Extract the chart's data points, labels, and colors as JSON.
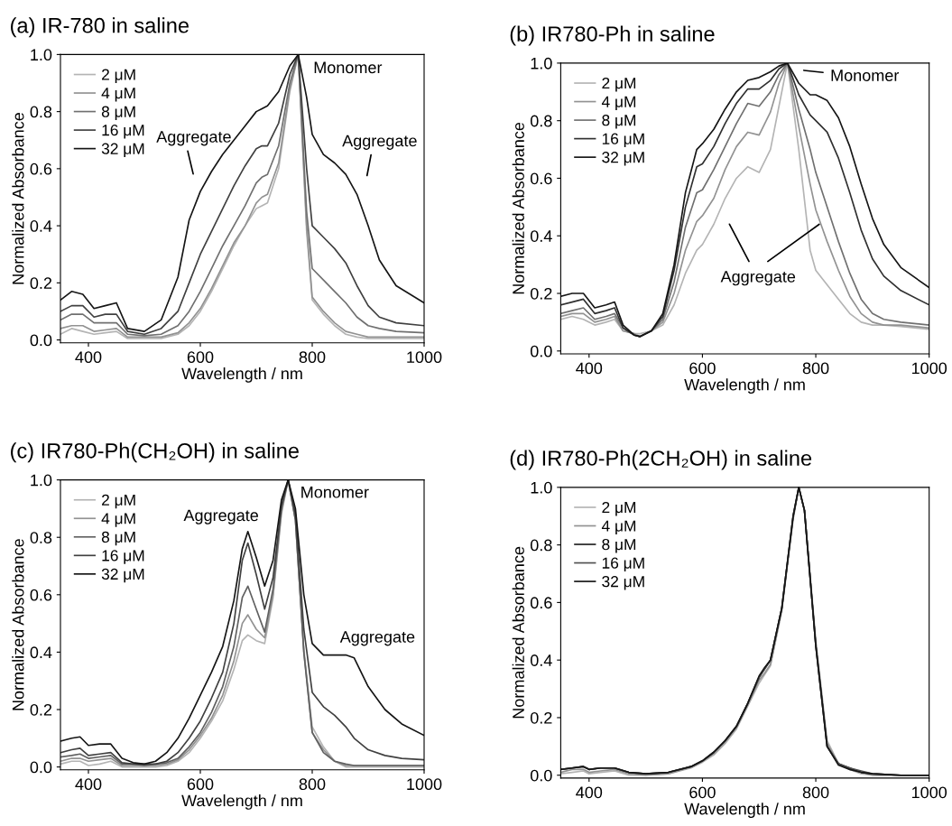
{
  "chart_data": [
    {
      "type": "line",
      "title": "(a) IR-780 in saline",
      "xlabel": "Wavelength / nm",
      "ylabel": "Normalized Absorbance",
      "legend": "top left",
      "grid": false,
      "line_style": "solid",
      "xlim": [
        350,
        1000
      ],
      "ylim": [
        -0.01,
        1.0
      ],
      "xticks": [
        400,
        600,
        800,
        1000
      ],
      "yticks": [
        {
          "value": 0,
          "label": "0.0"
        },
        {
          "value": 0.2,
          "label": "0.2"
        },
        {
          "value": 0.4,
          "label": "0.4"
        },
        {
          "value": 0.6,
          "label": "0.6"
        },
        {
          "value": 0.8,
          "label": "0.8"
        },
        {
          "value": 1,
          "label": "1.0"
        }
      ],
      "x": [
        350,
        370,
        390,
        410,
        430,
        450,
        470,
        500,
        530,
        560,
        580,
        600,
        620,
        640,
        660,
        680,
        700,
        710,
        720,
        740,
        760,
        775,
        790,
        800,
        820,
        840,
        860,
        880,
        900,
        920,
        950,
        1000
      ],
      "annotations": [
        "Monomer",
        "Aggregate",
        "Aggregate"
      ],
      "series": [
        {
          "name": "2 μM",
          "color": "#b4b4b4",
          "values": [
            0.02,
            0.04,
            0.03,
            0.02,
            0.025,
            0.03,
            0.005,
            0.005,
            0.005,
            0.02,
            0.05,
            0.1,
            0.17,
            0.25,
            0.33,
            0.4,
            0.46,
            0.47,
            0.48,
            0.6,
            0.87,
            1.0,
            0.38,
            0.14,
            0.09,
            0.05,
            0.02,
            0.01,
            0.005,
            0.005,
            0.005,
            0.005
          ]
        },
        {
          "name": "4 μM",
          "color": "#929292",
          "values": [
            0.04,
            0.05,
            0.05,
            0.03,
            0.035,
            0.04,
            0.01,
            0.01,
            0.01,
            0.025,
            0.06,
            0.11,
            0.18,
            0.26,
            0.34,
            0.4,
            0.48,
            0.5,
            0.51,
            0.62,
            0.88,
            1.0,
            0.4,
            0.15,
            0.1,
            0.06,
            0.03,
            0.02,
            0.01,
            0.01,
            0.01,
            0.01
          ]
        },
        {
          "name": "8 μM",
          "color": "#707070",
          "values": [
            0.07,
            0.09,
            0.09,
            0.06,
            0.06,
            0.06,
            0.02,
            0.015,
            0.02,
            0.05,
            0.1,
            0.17,
            0.25,
            0.33,
            0.4,
            0.47,
            0.55,
            0.57,
            0.58,
            0.68,
            0.9,
            1.0,
            0.45,
            0.25,
            0.21,
            0.17,
            0.13,
            0.08,
            0.05,
            0.04,
            0.03,
            0.025
          ]
        },
        {
          "name": "16 μM",
          "color": "#404040",
          "values": [
            0.1,
            0.12,
            0.12,
            0.08,
            0.09,
            0.09,
            0.03,
            0.02,
            0.04,
            0.1,
            0.2,
            0.3,
            0.38,
            0.46,
            0.54,
            0.61,
            0.67,
            0.68,
            0.68,
            0.76,
            0.93,
            1.0,
            0.6,
            0.4,
            0.36,
            0.32,
            0.27,
            0.19,
            0.12,
            0.08,
            0.06,
            0.05
          ]
        },
        {
          "name": "32 μM",
          "color": "#151515",
          "values": [
            0.14,
            0.17,
            0.16,
            0.11,
            0.12,
            0.13,
            0.04,
            0.03,
            0.07,
            0.22,
            0.42,
            0.52,
            0.59,
            0.65,
            0.7,
            0.75,
            0.8,
            0.81,
            0.82,
            0.87,
            0.96,
            1.0,
            0.85,
            0.72,
            0.65,
            0.62,
            0.58,
            0.51,
            0.4,
            0.28,
            0.19,
            0.13
          ]
        }
      ]
    },
    {
      "type": "line",
      "title": "(b) IR780-Ph in saline",
      "xlabel": "Wavelength / nm",
      "ylabel": "Normalized Absorbance",
      "legend": "top left",
      "grid": false,
      "line_style": "solid",
      "xlim": [
        350,
        1000
      ],
      "ylim": [
        -0.01,
        1.0
      ],
      "xticks": [
        400,
        600,
        800,
        1000
      ],
      "yticks": [
        {
          "value": 0,
          "label": "0.0"
        },
        {
          "value": 0.2,
          "label": "0.2"
        },
        {
          "value": 0.4,
          "label": "0.4"
        },
        {
          "value": 0.6,
          "label": "0.6"
        },
        {
          "value": 0.8,
          "label": "0.8"
        },
        {
          "value": 1,
          "label": "1.0"
        }
      ],
      "x": [
        350,
        370,
        390,
        410,
        430,
        445,
        460,
        480,
        490,
        510,
        530,
        550,
        570,
        590,
        600,
        620,
        640,
        660,
        680,
        700,
        720,
        735,
        750,
        770,
        790,
        800,
        820,
        840,
        860,
        880,
        900,
        920,
        950,
        1000
      ],
      "annotations": [
        "Monomer",
        {
          "text": "Aggregate",
          "x": 806,
          "y": 0.44
        }
      ],
      "series": [
        {
          "name": "2 μM",
          "color": "#b4b4b4",
          "values": [
            0.11,
            0.12,
            0.11,
            0.09,
            0.1,
            0.11,
            0.07,
            0.06,
            0.06,
            0.07,
            0.09,
            0.16,
            0.27,
            0.35,
            0.37,
            0.44,
            0.53,
            0.6,
            0.64,
            0.62,
            0.7,
            0.85,
            1.0,
            0.7,
            0.35,
            0.28,
            0.23,
            0.18,
            0.13,
            0.1,
            0.09,
            0.09,
            0.085,
            0.075
          ]
        },
        {
          "name": "4 μM",
          "color": "#929292",
          "values": [
            0.12,
            0.13,
            0.13,
            0.1,
            0.11,
            0.12,
            0.07,
            0.06,
            0.05,
            0.07,
            0.1,
            0.2,
            0.35,
            0.45,
            0.47,
            0.53,
            0.63,
            0.71,
            0.76,
            0.75,
            0.83,
            0.93,
            1.0,
            0.78,
            0.58,
            0.49,
            0.38,
            0.28,
            0.19,
            0.13,
            0.1,
            0.09,
            0.09,
            0.08
          ]
        },
        {
          "name": "8 μM",
          "color": "#707070",
          "values": [
            0.13,
            0.14,
            0.15,
            0.11,
            0.12,
            0.13,
            0.08,
            0.055,
            0.05,
            0.07,
            0.11,
            0.24,
            0.43,
            0.55,
            0.56,
            0.63,
            0.71,
            0.79,
            0.86,
            0.85,
            0.9,
            0.96,
            1.0,
            0.84,
            0.7,
            0.62,
            0.5,
            0.38,
            0.27,
            0.18,
            0.13,
            0.11,
            0.1,
            0.09
          ]
        },
        {
          "name": "16 μM",
          "color": "#303030",
          "values": [
            0.16,
            0.17,
            0.18,
            0.13,
            0.14,
            0.15,
            0.08,
            0.055,
            0.05,
            0.07,
            0.12,
            0.28,
            0.5,
            0.64,
            0.65,
            0.71,
            0.79,
            0.86,
            0.91,
            0.91,
            0.94,
            0.98,
            1.0,
            0.89,
            0.82,
            0.8,
            0.76,
            0.67,
            0.55,
            0.42,
            0.32,
            0.26,
            0.21,
            0.16
          ]
        },
        {
          "name": "32 μM",
          "color": "#151515",
          "values": [
            0.19,
            0.2,
            0.2,
            0.15,
            0.16,
            0.17,
            0.09,
            0.055,
            0.05,
            0.07,
            0.13,
            0.3,
            0.55,
            0.7,
            0.72,
            0.77,
            0.84,
            0.9,
            0.94,
            0.95,
            0.97,
            0.99,
            1.0,
            0.93,
            0.89,
            0.89,
            0.87,
            0.81,
            0.71,
            0.58,
            0.46,
            0.37,
            0.29,
            0.22
          ]
        }
      ]
    },
    {
      "type": "line",
      "title": "(c) IR780-Ph(CH₂OH) in saline",
      "xlabel": "Wavelength / nm",
      "ylabel": "Normalized Absorbance",
      "legend": "top left",
      "grid": false,
      "line_style": "solid",
      "xlim": [
        350,
        1000
      ],
      "ylim": [
        -0.01,
        1.0
      ],
      "xticks": [
        400,
        600,
        800,
        1000
      ],
      "yticks": [
        {
          "value": 0,
          "label": "0.0"
        },
        {
          "value": 0.2,
          "label": "0.2"
        },
        {
          "value": 0.4,
          "label": "0.4"
        },
        {
          "value": 0.6,
          "label": "0.6"
        },
        {
          "value": 0.8,
          "label": "0.8"
        },
        {
          "value": 1,
          "label": "1.0"
        }
      ],
      "x": [
        350,
        370,
        385,
        400,
        420,
        440,
        460,
        480,
        500,
        520,
        540,
        560,
        580,
        600,
        620,
        640,
        660,
        675,
        685,
        700,
        715,
        730,
        745,
        757,
        770,
        785,
        800,
        820,
        840,
        860,
        875,
        900,
        930,
        960,
        1000
      ],
      "annotations": [
        "Aggregate",
        "Monomer",
        "Aggregate"
      ],
      "series": [
        {
          "name": "2 μM",
          "color": "#b4b4b4",
          "values": [
            0.01,
            0.02,
            0.02,
            0.005,
            0.01,
            0.02,
            0.0,
            0.0,
            0.0,
            0.0,
            0.005,
            0.02,
            0.05,
            0.1,
            0.16,
            0.23,
            0.34,
            0.44,
            0.46,
            0.44,
            0.43,
            0.59,
            0.88,
            1.0,
            0.86,
            0.41,
            0.14,
            0.07,
            0.02,
            0.0,
            0.0,
            0.0,
            0.0,
            0.0,
            0.0
          ]
        },
        {
          "name": "4 μM",
          "color": "#929292",
          "values": [
            0.02,
            0.03,
            0.03,
            0.02,
            0.025,
            0.03,
            0.005,
            0.005,
            0.005,
            0.005,
            0.01,
            0.025,
            0.06,
            0.11,
            0.17,
            0.25,
            0.37,
            0.5,
            0.53,
            0.48,
            0.45,
            0.6,
            0.89,
            1.0,
            0.86,
            0.4,
            0.12,
            0.06,
            0.02,
            0.005,
            0.005,
            0.005,
            0.005,
            0.005,
            0.005
          ]
        },
        {
          "name": "8 μM",
          "color": "#606060",
          "values": [
            0.035,
            0.04,
            0.045,
            0.03,
            0.035,
            0.04,
            0.01,
            0.01,
            0.005,
            0.01,
            0.015,
            0.03,
            0.07,
            0.12,
            0.19,
            0.28,
            0.42,
            0.59,
            0.63,
            0.55,
            0.47,
            0.62,
            0.9,
            1.0,
            0.86,
            0.4,
            0.12,
            0.05,
            0.02,
            0.01,
            0.005,
            0.005,
            0.005,
            0.005,
            0.005
          ]
        },
        {
          "name": "16 μM",
          "color": "#404040",
          "values": [
            0.05,
            0.06,
            0.065,
            0.04,
            0.045,
            0.05,
            0.015,
            0.01,
            0.01,
            0.01,
            0.02,
            0.05,
            0.1,
            0.16,
            0.24,
            0.33,
            0.5,
            0.72,
            0.78,
            0.67,
            0.55,
            0.66,
            0.91,
            1.0,
            0.88,
            0.48,
            0.26,
            0.21,
            0.18,
            0.14,
            0.1,
            0.06,
            0.04,
            0.03,
            0.025
          ]
        },
        {
          "name": "32 μM",
          "color": "#151515",
          "values": [
            0.09,
            0.1,
            0.105,
            0.075,
            0.08,
            0.08,
            0.03,
            0.015,
            0.01,
            0.02,
            0.05,
            0.1,
            0.17,
            0.25,
            0.33,
            0.42,
            0.58,
            0.76,
            0.82,
            0.73,
            0.63,
            0.72,
            0.93,
            1.0,
            0.9,
            0.6,
            0.43,
            0.39,
            0.39,
            0.39,
            0.38,
            0.28,
            0.2,
            0.15,
            0.11
          ]
        }
      ]
    },
    {
      "type": "line",
      "title": "(d) IR780-Ph(2CH₂OH) in saline",
      "xlabel": "Wavelength / nm",
      "ylabel": "Normalized Absorbance",
      "legend": "top left",
      "grid": false,
      "line_style": "solid",
      "xlim": [
        350,
        1000
      ],
      "ylim": [
        -0.01,
        1.0
      ],
      "xticks": [
        400,
        600,
        800,
        1000
      ],
      "yticks": [
        {
          "value": 0,
          "label": "0.0"
        },
        {
          "value": 0.2,
          "label": "0.2"
        },
        {
          "value": 0.4,
          "label": "0.4"
        },
        {
          "value": 0.6,
          "label": "0.6"
        },
        {
          "value": 0.8,
          "label": "0.8"
        },
        {
          "value": 1,
          "label": "1.0"
        }
      ],
      "x": [
        350,
        370,
        390,
        400,
        420,
        445,
        470,
        500,
        540,
        580,
        600,
        620,
        640,
        660,
        680,
        700,
        710,
        720,
        740,
        760,
        770,
        780,
        800,
        820,
        840,
        860,
        880,
        900,
        950,
        1000
      ],
      "series": [
        {
          "name": "2 μM",
          "color": "#b4b4b4",
          "values": [
            0.005,
            0.01,
            0.015,
            0.005,
            0.01,
            0.015,
            0.0,
            0.0,
            0.005,
            0.025,
            0.045,
            0.07,
            0.11,
            0.16,
            0.24,
            0.32,
            0.35,
            0.38,
            0.57,
            0.89,
            1.0,
            0.92,
            0.47,
            0.12,
            0.04,
            0.02,
            0.005,
            0.0,
            0.0,
            0.0
          ]
        },
        {
          "name": "4 μM",
          "color": "#929292",
          "values": [
            0.01,
            0.02,
            0.02,
            0.01,
            0.015,
            0.02,
            0.005,
            0.0,
            0.005,
            0.028,
            0.048,
            0.075,
            0.115,
            0.165,
            0.245,
            0.33,
            0.355,
            0.385,
            0.575,
            0.89,
            1.0,
            0.92,
            0.46,
            0.11,
            0.04,
            0.02,
            0.01,
            0.0,
            0.0,
            0.0
          ]
        },
        {
          "name": "8 μM",
          "color": "#202020",
          "values": [
            0.02,
            0.025,
            0.03,
            0.02,
            0.025,
            0.025,
            0.01,
            0.005,
            0.01,
            0.03,
            0.05,
            0.08,
            0.12,
            0.17,
            0.25,
            0.34,
            0.37,
            0.4,
            0.58,
            0.9,
            1.0,
            0.92,
            0.45,
            0.1,
            0.04,
            0.025,
            0.01,
            0.005,
            0.0,
            0.0
          ]
        },
        {
          "name": "16 μM",
          "color": "#505050",
          "values": [
            0.02,
            0.025,
            0.03,
            0.02,
            0.025,
            0.025,
            0.01,
            0.005,
            0.01,
            0.03,
            0.05,
            0.08,
            0.12,
            0.17,
            0.25,
            0.34,
            0.37,
            0.4,
            0.58,
            0.9,
            1.0,
            0.92,
            0.45,
            0.1,
            0.04,
            0.025,
            0.015,
            0.005,
            0.0,
            0.0
          ]
        },
        {
          "name": "32 μM",
          "color": "#151515",
          "values": [
            0.02,
            0.025,
            0.03,
            0.02,
            0.025,
            0.025,
            0.01,
            0.005,
            0.01,
            0.03,
            0.05,
            0.08,
            0.12,
            0.17,
            0.25,
            0.345,
            0.375,
            0.4,
            0.58,
            0.9,
            1.0,
            0.92,
            0.45,
            0.1,
            0.035,
            0.02,
            0.01,
            0.005,
            0.0,
            0.0
          ]
        }
      ]
    }
  ]
}
